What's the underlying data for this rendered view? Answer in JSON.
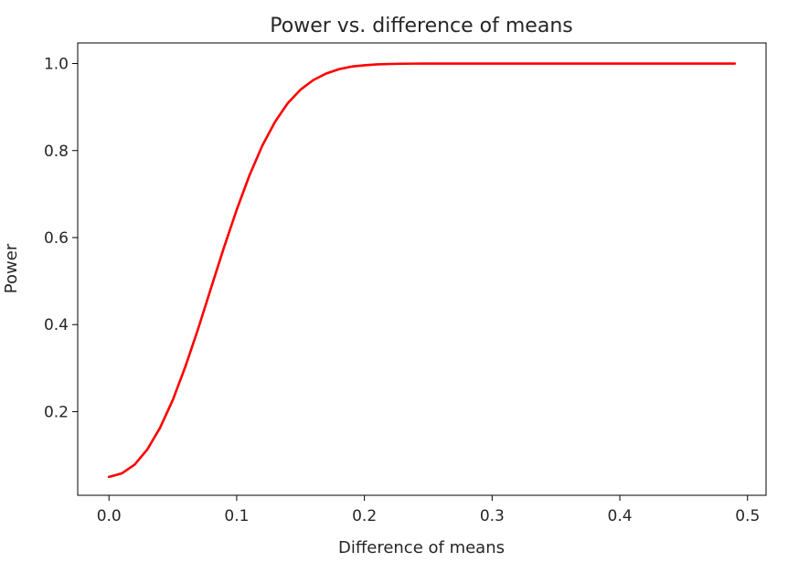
{
  "chart_data": {
    "type": "line",
    "title": "Power vs. difference of means",
    "xlabel": "Difference of means",
    "ylabel": "Power",
    "xlim": [
      -0.0245,
      0.5145
    ],
    "ylim": [
      0.0077,
      1.0473
    ],
    "grid": false,
    "legend": "none",
    "x_ticks": [
      0.0,
      0.1,
      0.2,
      0.3,
      0.4,
      0.5
    ],
    "x_tick_labels": [
      "0.0",
      "0.1",
      "0.2",
      "0.3",
      "0.4",
      "0.5"
    ],
    "y_ticks": [
      0.2,
      0.4,
      0.6,
      0.8,
      1.0
    ],
    "y_tick_labels": [
      "0.2",
      "0.4",
      "0.6",
      "0.8",
      "1.0"
    ],
    "series": [
      {
        "color": "#ff0000",
        "x": [
          0.0,
          0.01,
          0.02,
          0.03,
          0.04,
          0.05,
          0.06,
          0.07,
          0.08,
          0.09,
          0.1,
          0.11,
          0.12,
          0.13,
          0.14,
          0.15,
          0.16,
          0.17,
          0.18,
          0.19,
          0.2,
          0.21,
          0.22,
          0.23,
          0.24,
          0.25,
          0.26,
          0.27,
          0.28,
          0.29,
          0.3,
          0.31,
          0.32,
          0.33,
          0.34,
          0.35,
          0.36,
          0.37,
          0.38,
          0.39,
          0.4,
          0.41,
          0.42,
          0.43,
          0.44,
          0.45,
          0.46,
          0.47,
          0.48,
          0.49
        ],
        "y": [
          0.05,
          0.058,
          0.078,
          0.113,
          0.163,
          0.227,
          0.305,
          0.392,
          0.485,
          0.577,
          0.664,
          0.743,
          0.811,
          0.866,
          0.909,
          0.94,
          0.962,
          0.977,
          0.987,
          0.993,
          0.996,
          0.998,
          0.999,
          0.9995,
          0.9998,
          0.9999,
          1.0,
          1.0,
          1.0,
          1.0,
          1.0,
          1.0,
          1.0,
          1.0,
          1.0,
          1.0,
          1.0,
          1.0,
          1.0,
          1.0,
          1.0,
          1.0,
          1.0,
          1.0,
          1.0,
          1.0,
          1.0,
          1.0,
          1.0,
          1.0
        ]
      }
    ]
  }
}
